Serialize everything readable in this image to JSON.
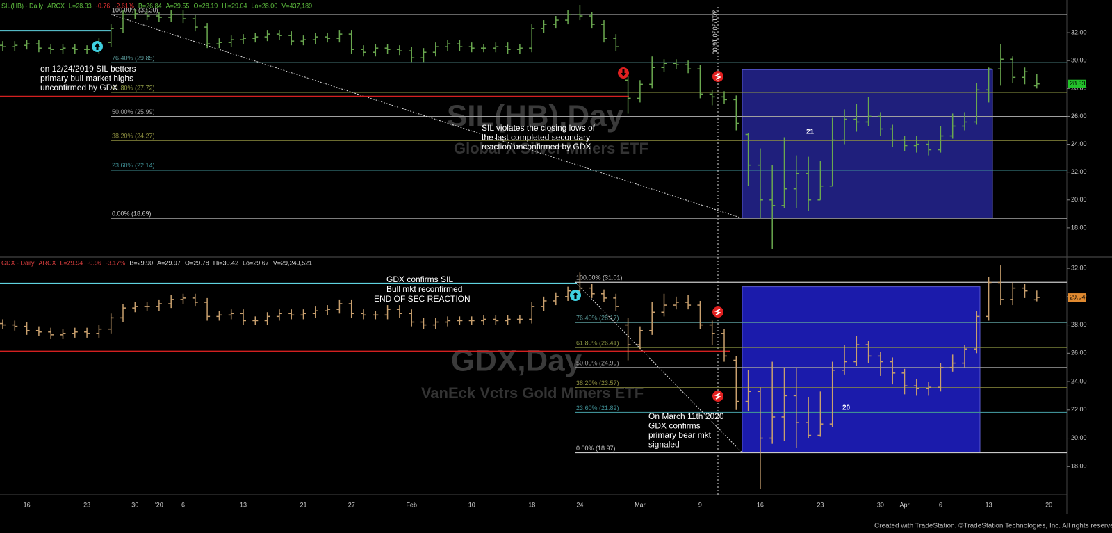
{
  "chart_data": [
    {
      "type": "ohlc",
      "header": [
        {
          "text": "SIL(HB) - Daily",
          "color": "#5fbf3f"
        },
        {
          "text": "ARCX",
          "color": "#5fbf3f"
        },
        {
          "text": "L=28.33",
          "color": "#5fbf3f"
        },
        {
          "text": "-0.76",
          "color": "#e03030"
        },
        {
          "text": "-2.61%",
          "color": "#e03030"
        },
        {
          "text": "B=26.84",
          "color": "#5fbf3f"
        },
        {
          "text": "A=29.55",
          "color": "#5fbf3f"
        },
        {
          "text": "O=28.19",
          "color": "#5fbf3f"
        },
        {
          "text": "Hi=29.04",
          "color": "#5fbf3f"
        },
        {
          "text": "Lo=28.00",
          "color": "#5fbf3f"
        },
        {
          "text": "V=437,189",
          "color": "#5fbf3f"
        }
      ],
      "watermark_title": "SIL(HB),Day",
      "watermark_subtitle": "Global X Silver Miners ETF",
      "color": "#6aa84f",
      "ylim": [
        16,
        34.1
      ],
      "yticks": [
        {
          "value": 18,
          "label": "18.00"
        },
        {
          "value": 20,
          "label": "20.00"
        },
        {
          "value": 22,
          "label": "22.00"
        },
        {
          "value": 24,
          "label": "24.00"
        },
        {
          "value": 26,
          "label": "26.00"
        },
        {
          "value": 28,
          "label": "28.00"
        },
        {
          "value": 30,
          "label": "30.00"
        },
        {
          "value": 32,
          "label": "32.00"
        }
      ],
      "open": [
        31.1,
        31.0,
        31.1,
        31.2,
        30.9,
        30.8,
        30.9,
        30.8,
        30.8,
        31.3,
        32.3,
        33.3,
        33.4,
        33.2,
        33.1,
        33.3,
        33.0,
        32.4,
        31.2,
        31.3,
        31.5,
        31.6,
        31.7,
        31.9,
        31.8,
        31.4,
        31.5,
        31.7,
        31.6,
        31.9,
        30.8,
        30.6,
        30.9,
        30.8,
        30.7,
        30.2,
        30.6,
        31.0,
        31.2,
        31.0,
        30.9,
        30.9,
        31.0,
        30.8,
        30.9,
        32.3,
        32.6,
        32.9,
        33.3,
        33.2,
        32.6,
        31.6,
        28.6,
        27.3,
        28.3,
        29.5,
        29.8,
        29.7,
        29.4,
        27.6,
        27.4,
        27.2,
        24.7,
        22.5,
        20.0,
        19.6,
        20.8,
        21.9,
        20.0,
        21.0,
        24.3,
        25.8,
        25.6,
        26.0,
        25.1,
        24.3,
        23.9,
        24.0,
        23.6,
        24.6,
        25.3,
        25.6,
        27.9,
        29.4,
        30.1,
        28.8,
        28.19,
        null
      ],
      "high": [
        31.4,
        31.4,
        31.5,
        31.5,
        31.2,
        31.2,
        31.2,
        31.1,
        31.6,
        32.6,
        33.6,
        33.7,
        33.7,
        33.5,
        33.6,
        33.6,
        33.3,
        32.7,
        31.6,
        31.8,
        31.9,
        32.0,
        32.2,
        32.2,
        32.1,
        31.8,
        32.0,
        32.0,
        32.2,
        32.2,
        31.1,
        31.2,
        31.2,
        31.1,
        31.0,
        30.9,
        31.3,
        31.5,
        31.5,
        31.3,
        31.2,
        31.3,
        31.3,
        31.2,
        32.6,
        32.9,
        33.2,
        33.6,
        34.0,
        33.5,
        32.9,
        31.9,
        28.9,
        28.6,
        30.3,
        30.1,
        30.1,
        30.0,
        29.7,
        27.9,
        27.8,
        27.5,
        24.8,
        23.7,
        22.5,
        24.5,
        23.2,
        23.1,
        22.8,
        25.9,
        26.5,
        26.9,
        27.4,
        26.3,
        25.4,
        24.6,
        24.6,
        24.3,
        25.3,
        26.2,
        26.3,
        28.4,
        29.5,
        31.2,
        30.3,
        29.5,
        29.04,
        null
      ],
      "low": [
        30.7,
        30.7,
        30.8,
        30.6,
        30.5,
        30.5,
        30.5,
        30.5,
        30.5,
        31.0,
        32.0,
        33.0,
        32.9,
        32.8,
        32.8,
        32.7,
        32.1,
        30.9,
        30.9,
        31.0,
        31.2,
        31.3,
        31.4,
        31.5,
        31.1,
        31.1,
        31.2,
        31.3,
        31.3,
        30.5,
        30.3,
        30.3,
        30.5,
        30.4,
        29.9,
        29.9,
        30.3,
        30.7,
        30.7,
        30.6,
        30.6,
        30.6,
        30.5,
        30.5,
        30.6,
        32.0,
        32.3,
        32.6,
        32.9,
        32.3,
        31.3,
        30.7,
        26.2,
        27.0,
        28.0,
        29.2,
        29.4,
        29.1,
        27.3,
        26.8,
        26.9,
        25.0,
        21.0,
        18.7,
        16.5,
        19.4,
        19.4,
        19.2,
        20.0,
        21.0,
        24.0,
        24.9,
        25.3,
        24.6,
        23.8,
        23.5,
        23.4,
        23.2,
        23.4,
        24.4,
        25.0,
        25.4,
        27.0,
        28.2,
        28.4,
        28.3,
        28.0,
        null
      ],
      "close": [
        31.0,
        31.1,
        31.2,
        30.9,
        30.8,
        30.9,
        30.8,
        30.8,
        31.3,
        32.3,
        33.3,
        33.4,
        33.2,
        33.1,
        33.3,
        33.0,
        32.4,
        31.2,
        31.3,
        31.5,
        31.6,
        31.7,
        31.9,
        31.8,
        31.4,
        31.5,
        31.7,
        31.6,
        31.9,
        30.8,
        30.6,
        30.9,
        30.8,
        30.7,
        30.2,
        30.6,
        31.0,
        31.2,
        31.0,
        30.9,
        30.9,
        31.0,
        30.8,
        30.9,
        32.3,
        32.6,
        32.9,
        33.3,
        33.2,
        32.6,
        31.6,
        31.0,
        27.3,
        28.3,
        29.5,
        29.8,
        29.7,
        29.4,
        27.6,
        27.4,
        27.2,
        25.5,
        22.5,
        20.0,
        19.6,
        20.8,
        21.9,
        20.0,
        21.0,
        24.3,
        25.8,
        25.6,
        26.0,
        25.1,
        24.3,
        23.9,
        24.0,
        23.6,
        24.6,
        25.3,
        25.6,
        27.9,
        29.4,
        30.1,
        28.8,
        29.2,
        28.33,
        null
      ],
      "last": {
        "value": 28.33,
        "label": "28.33",
        "color": "#22c02a"
      },
      "hlines": [
        {
          "value": 32.15,
          "color": "#5fd3e0"
        },
        {
          "value": 27.43,
          "color": "#d42020"
        }
      ],
      "fib_levels": [
        {
          "value": 33.3,
          "label": "100.00% (33.30)",
          "color": "#c8c8c8"
        },
        {
          "value": 29.85,
          "label": "76.40% (29.85)",
          "color": "#5a9a9a"
        },
        {
          "value": 27.72,
          "label": "61.80% (27.72)",
          "color": "#8f9a45"
        },
        {
          "value": 25.99,
          "label": "50.00% (25.99)",
          "color": "#a0a0a0"
        },
        {
          "value": 24.27,
          "label": "38.20% (24.27)",
          "color": "#8f9040"
        },
        {
          "value": 22.14,
          "label": "23.60% (22.14)",
          "color": "#3f8f95"
        },
        {
          "value": 18.69,
          "label": "0.00% (18.69)",
          "color": "#c8c8c8"
        }
      ],
      "box": {
        "top": 29.35,
        "bottom": 18.69,
        "label": "21"
      },
      "cursor_label": "3/11/2020 16:00",
      "annotations": [
        {
          "lines": [
            "on 12/24/2019 SIL betters",
            "primary bull market highs",
            "unconfirmed by GDX"
          ]
        },
        {
          "lines": [
            "SIL violates the closing lows of",
            "the last completed secondary",
            "reaction unconfirmed by GDX"
          ]
        }
      ]
    },
    {
      "type": "ohlc",
      "header": [
        {
          "text": "GDX - Daily",
          "color": "#e04040"
        },
        {
          "text": "ARCX",
          "color": "#e04040"
        },
        {
          "text": "L=29.94",
          "color": "#e04040"
        },
        {
          "text": "-0.96",
          "color": "#e04040"
        },
        {
          "text": "-3.17%",
          "color": "#e04040"
        },
        {
          "text": "B=29.90",
          "color": "#dddddd"
        },
        {
          "text": "A=29.97",
          "color": "#dddddd"
        },
        {
          "text": "O=29.78",
          "color": "#dddddd"
        },
        {
          "text": "Hi=30.42",
          "color": "#dddddd"
        },
        {
          "text": "Lo=29.67",
          "color": "#dddddd"
        },
        {
          "text": "V=29,249,521",
          "color": "#dddddd"
        }
      ],
      "watermark_title": "GDX,Day",
      "watermark_subtitle": "VanEck Vctrs Gold Miners ETF",
      "color": "#c9a06e",
      "ylim": [
        16,
        32.3
      ],
      "yticks": [
        {
          "value": 18,
          "label": "18.00"
        },
        {
          "value": 20,
          "label": "20.00"
        },
        {
          "value": 22,
          "label": "22.00"
        },
        {
          "value": 24,
          "label": "24.00"
        },
        {
          "value": 26,
          "label": "26.00"
        },
        {
          "value": 28,
          "label": "28.00"
        },
        {
          "value": 30,
          "label": "30.00"
        },
        {
          "value": 32,
          "label": "32.00"
        }
      ],
      "categories": [
        null,
        null,
        "16",
        null,
        null,
        null,
        null,
        "23",
        null,
        null,
        null,
        "30",
        null,
        "'20",
        null,
        "6",
        null,
        null,
        null,
        null,
        "13",
        null,
        null,
        null,
        null,
        "21",
        null,
        null,
        null,
        "27",
        null,
        null,
        null,
        null,
        "Feb",
        null,
        null,
        null,
        null,
        "10",
        null,
        null,
        null,
        null,
        "18",
        null,
        null,
        null,
        "24",
        null,
        null,
        null,
        null,
        "Mar",
        null,
        null,
        null,
        null,
        "9",
        null,
        null,
        null,
        null,
        "16",
        null,
        null,
        null,
        null,
        "23",
        null,
        null,
        null,
        null,
        "30",
        null,
        "Apr",
        null,
        null,
        "6",
        null,
        null,
        null,
        "13",
        null,
        null,
        null,
        null,
        "20"
      ],
      "open": [
        28.1,
        28.0,
        27.9,
        27.6,
        27.5,
        27.3,
        27.4,
        27.5,
        27.4,
        27.7,
        28.5,
        29.2,
        29.3,
        29.3,
        29.5,
        29.8,
        29.9,
        29.6,
        28.6,
        28.7,
        28.8,
        28.3,
        28.3,
        28.6,
        28.8,
        28.7,
        28.8,
        29.0,
        29.1,
        29.5,
        28.8,
        28.7,
        28.7,
        29.1,
        28.8,
        28.2,
        28.0,
        28.2,
        28.3,
        28.3,
        28.3,
        28.4,
        28.3,
        28.4,
        28.4,
        29.3,
        29.7,
        30.0,
        30.4,
        30.6,
        30.2,
        29.9,
        28.0,
        26.6,
        27.6,
        28.9,
        29.4,
        29.6,
        29.4,
        28.0,
        27.4,
        25.5,
        22.6,
        23.3,
        20.0,
        21.5,
        23.0,
        21.1,
        20.2,
        21.0,
        24.8,
        25.4,
        26.6,
        25.8,
        25.4,
        24.6,
        23.7,
        23.5,
        23.6,
        25.0,
        25.3,
        26.3,
        28.6,
        31.0,
        29.8,
        30.6,
        29.78,
        null
      ],
      "high": [
        28.4,
        28.3,
        28.2,
        27.9,
        27.8,
        27.7,
        27.8,
        27.8,
        28.0,
        28.8,
        29.5,
        29.6,
        29.6,
        29.8,
        30.1,
        30.2,
        30.2,
        29.9,
        29.0,
        29.1,
        29.1,
        28.6,
        28.9,
        29.1,
        29.1,
        29.1,
        29.3,
        29.4,
        29.8,
        29.8,
        29.1,
        29.0,
        29.4,
        29.4,
        29.1,
        28.5,
        28.5,
        28.6,
        28.6,
        28.6,
        28.7,
        28.7,
        28.7,
        28.7,
        29.6,
        30.0,
        30.3,
        30.7,
        31.7,
        30.9,
        30.5,
        30.2,
        28.5,
        27.9,
        29.6,
        30.2,
        30.0,
        30.1,
        29.7,
        28.3,
        27.7,
        25.8,
        24.8,
        23.6,
        25.4,
        25.0,
        25.0,
        22.9,
        23.3,
        25.4,
        26.6,
        27.2,
        26.9,
        26.1,
        25.7,
        24.9,
        24.2,
        24.0,
        25.3,
        25.9,
        26.6,
        29.0,
        31.4,
        32.2,
        31.0,
        30.9,
        30.42,
        null
      ],
      "low": [
        27.7,
        27.6,
        27.3,
        27.2,
        27.0,
        27.0,
        27.1,
        27.1,
        27.1,
        27.4,
        28.2,
        28.9,
        29.0,
        29.0,
        29.2,
        29.5,
        29.3,
        28.3,
        28.3,
        28.4,
        28.0,
        28.0,
        28.0,
        28.3,
        28.4,
        28.4,
        28.5,
        28.7,
        28.8,
        28.5,
        28.4,
        28.4,
        28.4,
        28.5,
        27.9,
        27.7,
        27.7,
        27.9,
        28.0,
        28.0,
        28.0,
        28.0,
        28.0,
        28.1,
        28.1,
        29.0,
        29.4,
        29.7,
        30.1,
        29.9,
        29.6,
        29.0,
        25.5,
        26.3,
        27.3,
        28.6,
        29.1,
        29.1,
        27.7,
        26.6,
        25.4,
        22.0,
        21.9,
        16.4,
        19.6,
        19.8,
        19.3,
        20.0,
        20.1,
        20.8,
        24.5,
        25.1,
        25.3,
        24.4,
        23.8,
        23.1,
        23.0,
        23.0,
        23.3,
        24.7,
        25.0,
        26.0,
        28.3,
        29.4,
        29.4,
        29.9,
        29.67,
        null
      ],
      "close": [
        28.0,
        27.9,
        27.6,
        27.5,
        27.3,
        27.4,
        27.5,
        27.4,
        27.7,
        28.5,
        29.2,
        29.3,
        29.3,
        29.5,
        29.8,
        29.9,
        29.6,
        28.6,
        28.7,
        28.8,
        28.3,
        28.3,
        28.6,
        28.8,
        28.7,
        28.8,
        29.0,
        29.1,
        29.5,
        28.8,
        28.7,
        28.7,
        29.1,
        28.8,
        28.2,
        28.0,
        28.2,
        28.3,
        28.3,
        28.3,
        28.4,
        28.3,
        28.4,
        28.4,
        29.3,
        29.7,
        30.0,
        30.4,
        30.6,
        30.2,
        29.9,
        29.3,
        26.6,
        27.6,
        28.9,
        29.4,
        29.6,
        29.4,
        28.0,
        27.4,
        25.8,
        22.6,
        23.3,
        20.0,
        21.5,
        23.0,
        21.1,
        20.2,
        21.0,
        24.8,
        25.4,
        26.6,
        25.8,
        25.4,
        24.6,
        23.7,
        23.5,
        23.6,
        25.0,
        25.3,
        26.3,
        28.6,
        31.0,
        29.8,
        30.6,
        30.4,
        29.94,
        null
      ],
      "last": {
        "value": 29.94,
        "label": "29.94",
        "color": "#e08a30"
      },
      "hlines": [
        {
          "value": 30.93,
          "color": "#5fd3e0"
        },
        {
          "value": 26.13,
          "color": "#d42020"
        }
      ],
      "fib_levels": [
        {
          "value": 31.01,
          "label": "100.00% (31.01)",
          "color": "#c8c8c8"
        },
        {
          "value": 28.17,
          "label": "76.40% (28.17)",
          "color": "#5a9a9a"
        },
        {
          "value": 26.41,
          "label": "61.80% (26.41)",
          "color": "#8f9a45"
        },
        {
          "value": 24.99,
          "label": "50.00% (24.99)",
          "color": "#a0a0a0"
        },
        {
          "value": 23.57,
          "label": "38.20% (23.57)",
          "color": "#8f9040"
        },
        {
          "value": 21.82,
          "label": "23.60% (21.82)",
          "color": "#3f8f95"
        },
        {
          "value": 18.97,
          "label": "0.00% (18.97)",
          "color": "#c8c8c8"
        }
      ],
      "box": {
        "top": 30.7,
        "bottom": 18.97,
        "label": "20"
      },
      "annotations": [
        {
          "lines": [
            "GDX confirms SIL"
          ]
        },
        {
          "lines": [
            "Bull mkt reconfirmed"
          ]
        },
        {
          "lines": [
            "END OF SEC REACTION"
          ]
        },
        {
          "lines": [
            "On March 11th 2020",
            "GDX confirms",
            "primary bear mkt",
            "signaled"
          ]
        }
      ]
    }
  ],
  "footer": "Created with TradeStation. ©TradeStation Technologies, Inc. All rights reserved."
}
